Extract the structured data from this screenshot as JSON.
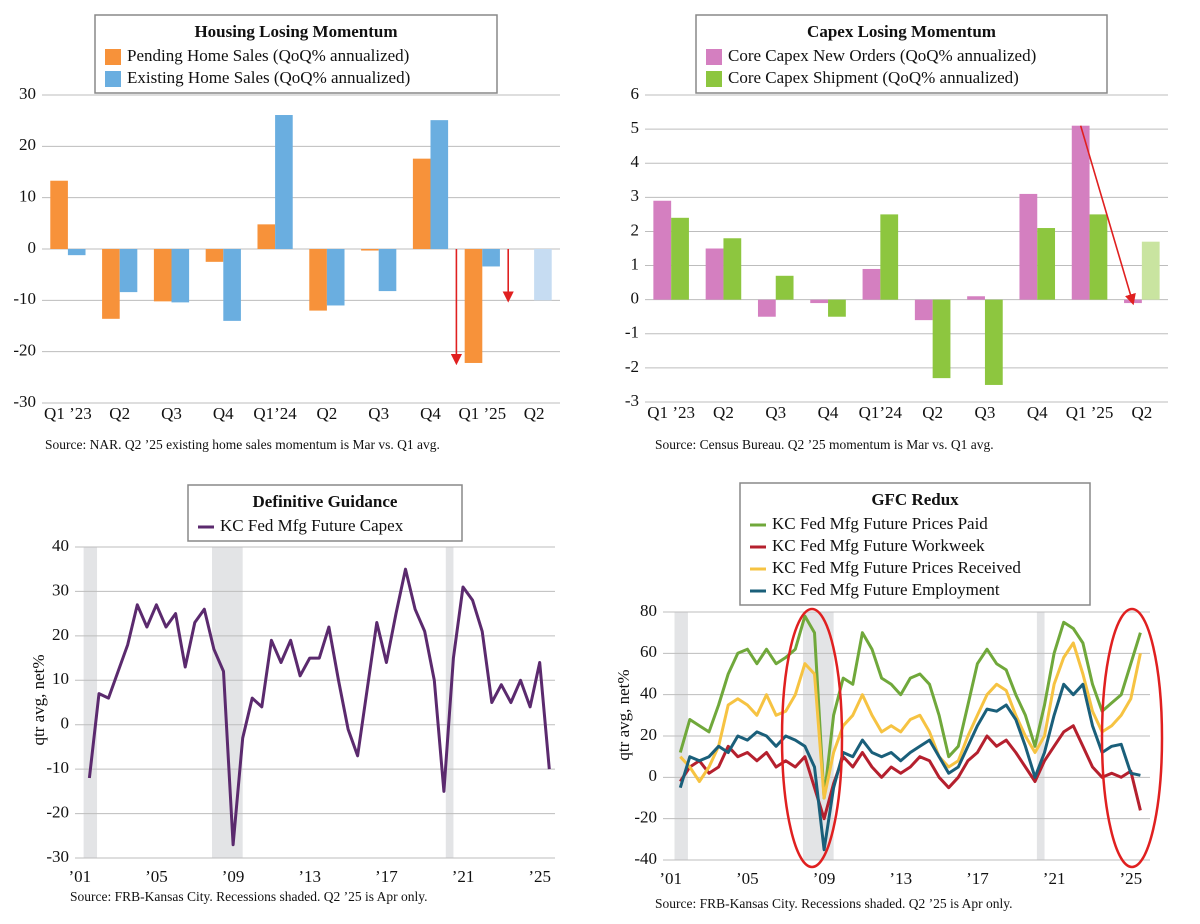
{
  "chart_data": [
    {
      "type": "bar",
      "title": "Housing Losing Momentum",
      "categories": [
        "Q1 ’23",
        "Q2",
        "Q3",
        "Q4",
        "Q1’24",
        "Q2",
        "Q3",
        "Q4",
        "Q1 ’25",
        "Q2"
      ],
      "series": [
        {
          "name": "Pending Home Sales (QoQ% annualized)",
          "color": "#f7923a",
          "values": [
            13.3,
            -13.6,
            -10.2,
            -2.5,
            4.8,
            -12.0,
            -0.3,
            17.6,
            -22.2,
            null
          ]
        },
        {
          "name": "Existing Home Sales (QoQ% annualized)",
          "color": "#6aaee0",
          "colors": [
            "#6aaee0",
            "#6aaee0",
            "#6aaee0",
            "#6aaee0",
            "#6aaee0",
            "#6aaee0",
            "#6aaee0",
            "#6aaee0",
            "#6aaee0",
            "#c6dcf2"
          ],
          "values": [
            -1.2,
            -8.4,
            -10.4,
            -14.0,
            26.1,
            -11.0,
            -8.2,
            25.1,
            -3.4,
            -10.0
          ]
        }
      ],
      "ylim": [
        -30,
        30
      ],
      "yticks": [
        -30,
        -20,
        -10,
        0,
        10,
        20,
        30
      ],
      "grid": true,
      "source": "Source: NAR. Q2 ’25 existing home sales momentum is Mar vs. Q1 avg."
    },
    {
      "type": "bar",
      "title": "Capex Losing Momentum",
      "categories": [
        "Q1 ’23",
        "Q2",
        "Q3",
        "Q4",
        "Q1’24",
        "Q2",
        "Q3",
        "Q4",
        "Q1 ’25",
        "Q2"
      ],
      "series": [
        {
          "name": "Core Capex New Orders (QoQ% annualized)",
          "color": "#d47fc0",
          "values": [
            2.9,
            1.5,
            -0.5,
            -0.1,
            0.9,
            -0.6,
            0.1,
            3.1,
            5.1,
            -0.1
          ]
        },
        {
          "name": "Core Capex Shipment (QoQ% annualized)",
          "color": "#8dc63f",
          "colors": [
            "#8dc63f",
            "#8dc63f",
            "#8dc63f",
            "#8dc63f",
            "#8dc63f",
            "#8dc63f",
            "#8dc63f",
            "#8dc63f",
            "#8dc63f",
            "#c9e4a0"
          ],
          "values": [
            2.4,
            1.8,
            0.7,
            -0.5,
            2.5,
            -2.3,
            -2.5,
            2.1,
            2.5,
            1.7
          ]
        }
      ],
      "ylim": [
        -3,
        6
      ],
      "yticks": [
        -3,
        -2,
        -1,
        0,
        1,
        2,
        3,
        4,
        5,
        6
      ],
      "grid": true,
      "source": "Source: Census Bureau. Q2 ’25 momentum is Mar vs. Q1 avg."
    },
    {
      "type": "line",
      "title": "Definitive Guidance",
      "ylabel": "qtr avg, net%",
      "x": [
        2001.5,
        2002,
        2002.5,
        2003,
        2003.5,
        2004,
        2004.5,
        2005,
        2005.5,
        2006,
        2006.5,
        2007,
        2007.5,
        2008,
        2008.5,
        2009,
        2009.5,
        2010,
        2010.5,
        2011,
        2011.5,
        2012,
        2012.5,
        2013,
        2013.5,
        2014,
        2014.5,
        2015,
        2015.5,
        2016,
        2016.5,
        2017,
        2017.5,
        2018,
        2018.5,
        2019,
        2019.5,
        2020,
        2020.5,
        2021,
        2021.5,
        2022,
        2022.5,
        2023,
        2023.5,
        2024,
        2024.5,
        2025,
        2025.5
      ],
      "series": [
        {
          "name": "KC Fed Mfg Future Capex",
          "color": "#5b2a6e",
          "values": [
            -12,
            7,
            6,
            12,
            18,
            27,
            22,
            27,
            22,
            25,
            13,
            23,
            26,
            17,
            12,
            -27,
            -3,
            6,
            4,
            19,
            14,
            19,
            11,
            15,
            15,
            22,
            10,
            -1,
            -7,
            8,
            23,
            14,
            25,
            35,
            26,
            21,
            10,
            -15,
            15,
            31,
            28,
            21,
            5,
            9,
            5,
            10,
            4,
            14,
            -10
          ]
        }
      ],
      "xlim": [
        2000.75,
        2025.8
      ],
      "xticks": [
        {
          "value": 2001,
          "label": "’01"
        },
        {
          "value": 2005,
          "label": "’05"
        },
        {
          "value": 2009,
          "label": "’09"
        },
        {
          "value": 2013,
          "label": "’13"
        },
        {
          "value": 2017,
          "label": "’17"
        },
        {
          "value": 2021,
          "label": "’21"
        },
        {
          "value": 2025,
          "label": "’25"
        }
      ],
      "ylim": [
        -30,
        40
      ],
      "yticks": [
        -30,
        -20,
        -10,
        0,
        10,
        20,
        30,
        40
      ],
      "grid": true,
      "shaded_ranges": [
        [
          2001.2,
          2001.9
        ],
        [
          2007.9,
          2009.5
        ],
        [
          2020.1,
          2020.5
        ]
      ],
      "source": "Source: FRB-Kansas City. Recessions shaded. Q2 ’25 is Apr only."
    },
    {
      "type": "line",
      "title": "GFC Redux",
      "ylabel": "qtr avg, net%",
      "x": [
        2001.5,
        2002,
        2002.5,
        2003,
        2003.5,
        2004,
        2004.5,
        2005,
        2005.5,
        2006,
        2006.5,
        2007,
        2007.5,
        2008,
        2008.5,
        2009,
        2009.5,
        2010,
        2010.5,
        2011,
        2011.5,
        2012,
        2012.5,
        2013,
        2013.5,
        2014,
        2014.5,
        2015,
        2015.5,
        2016,
        2016.5,
        2017,
        2017.5,
        2018,
        2018.5,
        2019,
        2019.5,
        2020,
        2020.5,
        2021,
        2021.5,
        2022,
        2022.5,
        2023,
        2023.5,
        2024,
        2024.5,
        2025,
        2025.5
      ],
      "series": [
        {
          "name": "KC Fed Mfg Future Prices Paid",
          "color": "#70a83b",
          "values": [
            12,
            28,
            25,
            22,
            35,
            50,
            60,
            62,
            55,
            62,
            55,
            58,
            62,
            78,
            70,
            -10,
            30,
            48,
            45,
            70,
            62,
            48,
            45,
            40,
            48,
            50,
            45,
            30,
            10,
            15,
            35,
            55,
            62,
            55,
            52,
            40,
            30,
            15,
            35,
            60,
            75,
            72,
            65,
            45,
            32,
            36,
            40,
            55,
            70
          ]
        },
        {
          "name": "KC Fed Mfg Future Workweek",
          "color": "#b5202e",
          "values": [
            -2,
            5,
            8,
            2,
            5,
            15,
            10,
            12,
            8,
            12,
            5,
            8,
            5,
            10,
            -5,
            -20,
            -3,
            10,
            5,
            12,
            5,
            0,
            5,
            2,
            5,
            10,
            8,
            0,
            -5,
            0,
            8,
            12,
            20,
            15,
            18,
            12,
            5,
            -2,
            8,
            15,
            22,
            25,
            15,
            5,
            0,
            2,
            0,
            3,
            -16
          ]
        },
        {
          "name": "KC Fed Mfg Future Prices Received",
          "color": "#f6c342",
          "values": [
            10,
            5,
            -2,
            5,
            15,
            35,
            38,
            35,
            30,
            40,
            30,
            32,
            40,
            55,
            50,
            -10,
            12,
            25,
            30,
            40,
            30,
            22,
            25,
            22,
            28,
            30,
            22,
            10,
            5,
            8,
            20,
            30,
            40,
            45,
            42,
            30,
            20,
            12,
            20,
            45,
            58,
            65,
            50,
            32,
            22,
            25,
            30,
            38,
            60
          ]
        },
        {
          "name": "KC Fed Mfg Future Employment",
          "color": "#1a5f7a",
          "values": [
            -5,
            10,
            8,
            10,
            15,
            12,
            20,
            18,
            22,
            20,
            15,
            20,
            18,
            15,
            5,
            -35,
            -5,
            12,
            10,
            18,
            12,
            10,
            12,
            8,
            12,
            15,
            18,
            10,
            2,
            5,
            15,
            25,
            33,
            32,
            35,
            28,
            15,
            0,
            12,
            30,
            45,
            40,
            45,
            25,
            12,
            15,
            16,
            2,
            1
          ]
        }
      ],
      "xlim": [
        2000.6,
        2026
      ],
      "xticks": [
        {
          "value": 2001,
          "label": "’01"
        },
        {
          "value": 2005,
          "label": "’05"
        },
        {
          "value": 2009,
          "label": "’09"
        },
        {
          "value": 2013,
          "label": "’13"
        },
        {
          "value": 2017,
          "label": "’17"
        },
        {
          "value": 2021,
          "label": "’21"
        },
        {
          "value": 2025,
          "label": "’25"
        }
      ],
      "ylim": [
        -40,
        80
      ],
      "yticks": [
        -40,
        -20,
        0,
        20,
        40,
        60,
        80
      ],
      "grid": true,
      "shaded_ranges": [
        [
          2001.2,
          2001.9
        ],
        [
          2007.9,
          2009.5
        ],
        [
          2020.1,
          2020.5
        ]
      ],
      "source": "Source: FRB-Kansas City. Recessions shaded. Q2 ’25 is Apr only."
    }
  ]
}
